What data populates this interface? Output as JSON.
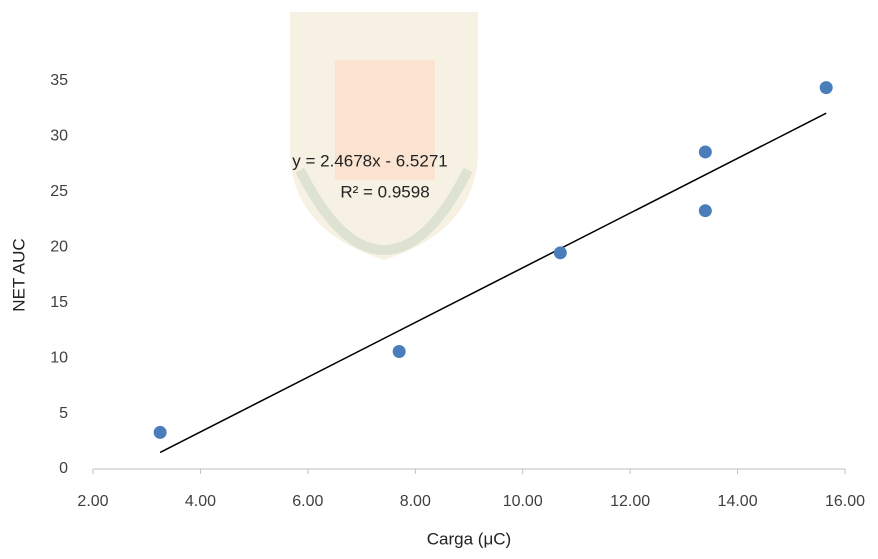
{
  "chart_data": {
    "type": "scatter",
    "x_label": "Carga (μC)",
    "y_label": "NET AUC",
    "series": [
      {
        "color": "#4a7ebb",
        "x": [
          3.25,
          7.7,
          10.7,
          13.4,
          13.4,
          15.65
        ],
        "values": [
          3.3,
          10.6,
          19.5,
          28.6,
          23.3,
          34.4
        ]
      }
    ],
    "trendline": {
      "equation": "y = 2.4678x - 6.5271",
      "r2": "R² = 0.9598",
      "slope": 2.4678,
      "intercept": -6.5271,
      "color": "#000000"
    },
    "xlim": [
      2,
      16
    ],
    "xticks": [
      {
        "value": 2,
        "label": "2.00"
      },
      {
        "value": 4,
        "label": "4.00"
      },
      {
        "value": 6,
        "label": "6.00"
      },
      {
        "value": 8,
        "label": "8.00"
      },
      {
        "value": 10,
        "label": "10.00"
      },
      {
        "value": 12,
        "label": "12.00"
      },
      {
        "value": 14,
        "label": "14.00"
      },
      {
        "value": 16,
        "label": "16.00"
      }
    ],
    "ylim": [
      0,
      35
    ],
    "yticks": [
      0,
      5,
      10,
      15,
      20,
      25,
      30,
      35
    ],
    "grid": false
  }
}
